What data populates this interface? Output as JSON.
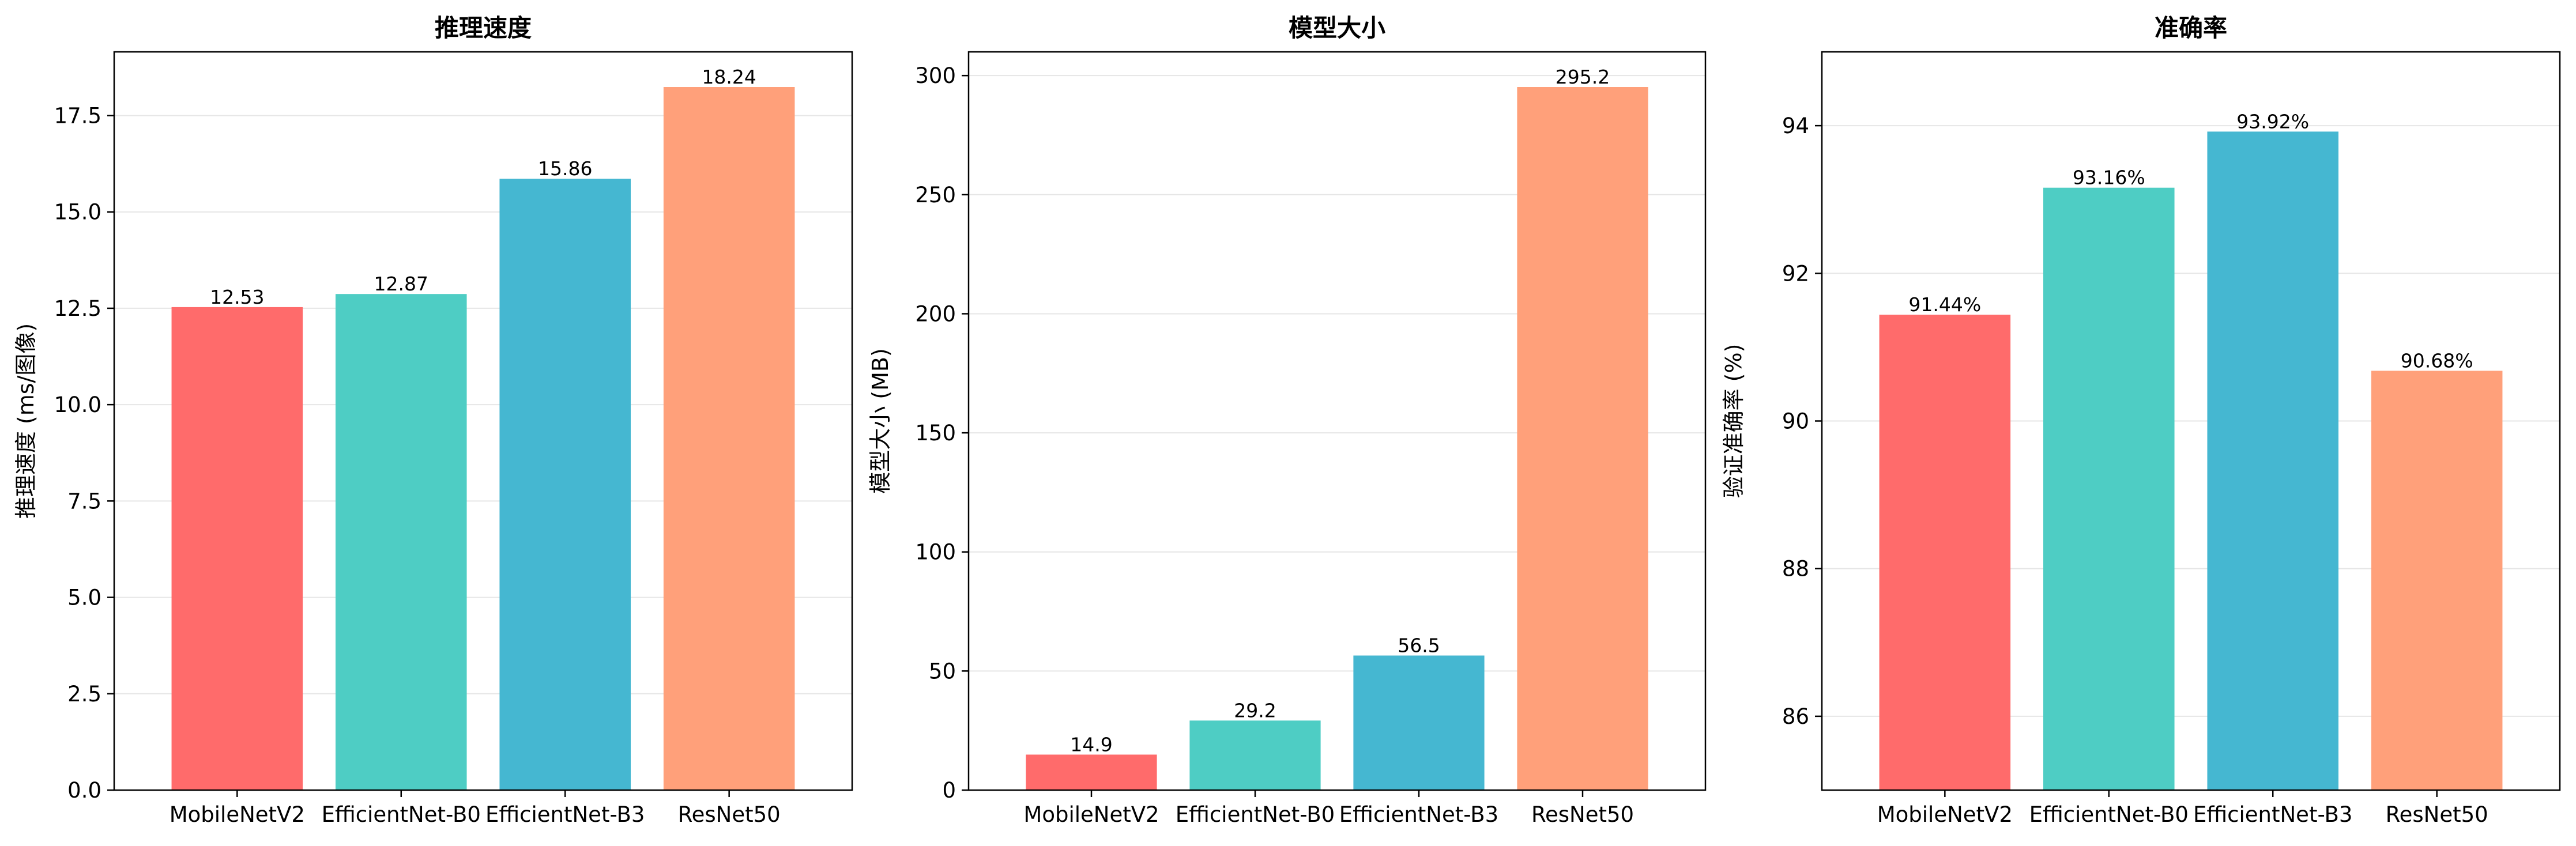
{
  "chart_data": [
    {
      "type": "bar",
      "title": "推理速度",
      "xlabel": "",
      "ylabel": "推理速度 (ms/图像)",
      "categories": [
        "MobileNetV2",
        "EfficientNet-B0",
        "EfficientNet-B3",
        "ResNet50"
      ],
      "values": [
        12.53,
        12.87,
        15.86,
        18.24
      ],
      "value_labels": [
        "12.53",
        "12.87",
        "15.86",
        "18.24"
      ],
      "ylim": [
        0,
        19.152
      ],
      "yticks": [
        0,
        2.5,
        5,
        7.5,
        10,
        12.5,
        15,
        17.5
      ],
      "ytick_labels": [
        "0.0",
        "2.5",
        "5.0",
        "7.5",
        "10.0",
        "12.5",
        "15.0",
        "17.5"
      ],
      "grid": "horizontal"
    },
    {
      "type": "bar",
      "title": "模型大小",
      "xlabel": "",
      "ylabel": "模型大小 (MB)",
      "categories": [
        "MobileNetV2",
        "EfficientNet-B0",
        "EfficientNet-B3",
        "ResNet50"
      ],
      "values": [
        14.9,
        29.2,
        56.5,
        295.2
      ],
      "value_labels": [
        "14.9",
        "29.2",
        "56.5",
        "295.2"
      ],
      "ylim": [
        0,
        309.96
      ],
      "yticks": [
        0,
        50,
        100,
        150,
        200,
        250,
        300
      ],
      "ytick_labels": [
        "0",
        "50",
        "100",
        "150",
        "200",
        "250",
        "300"
      ],
      "grid": "horizontal"
    },
    {
      "type": "bar",
      "title": "准确率",
      "xlabel": "",
      "ylabel": "验证准确率 (%)",
      "categories": [
        "MobileNetV2",
        "EfficientNet-B0",
        "EfficientNet-B3",
        "ResNet50"
      ],
      "values": [
        91.44,
        93.16,
        93.92,
        90.68
      ],
      "value_labels": [
        "91.44%",
        "93.16%",
        "93.92%",
        "90.68%"
      ],
      "ylim": [
        85,
        95
      ],
      "yticks": [
        86,
        88,
        90,
        92,
        94
      ],
      "ytick_labels": [
        "86",
        "88",
        "90",
        "92",
        "94"
      ],
      "grid": "horizontal"
    }
  ],
  "colors": {
    "bars": [
      "#ff6b6b",
      "#4ecdc4",
      "#45b7d1",
      "#ffa07a"
    ],
    "grid": "#e6e6e6",
    "axis": "#000000"
  }
}
